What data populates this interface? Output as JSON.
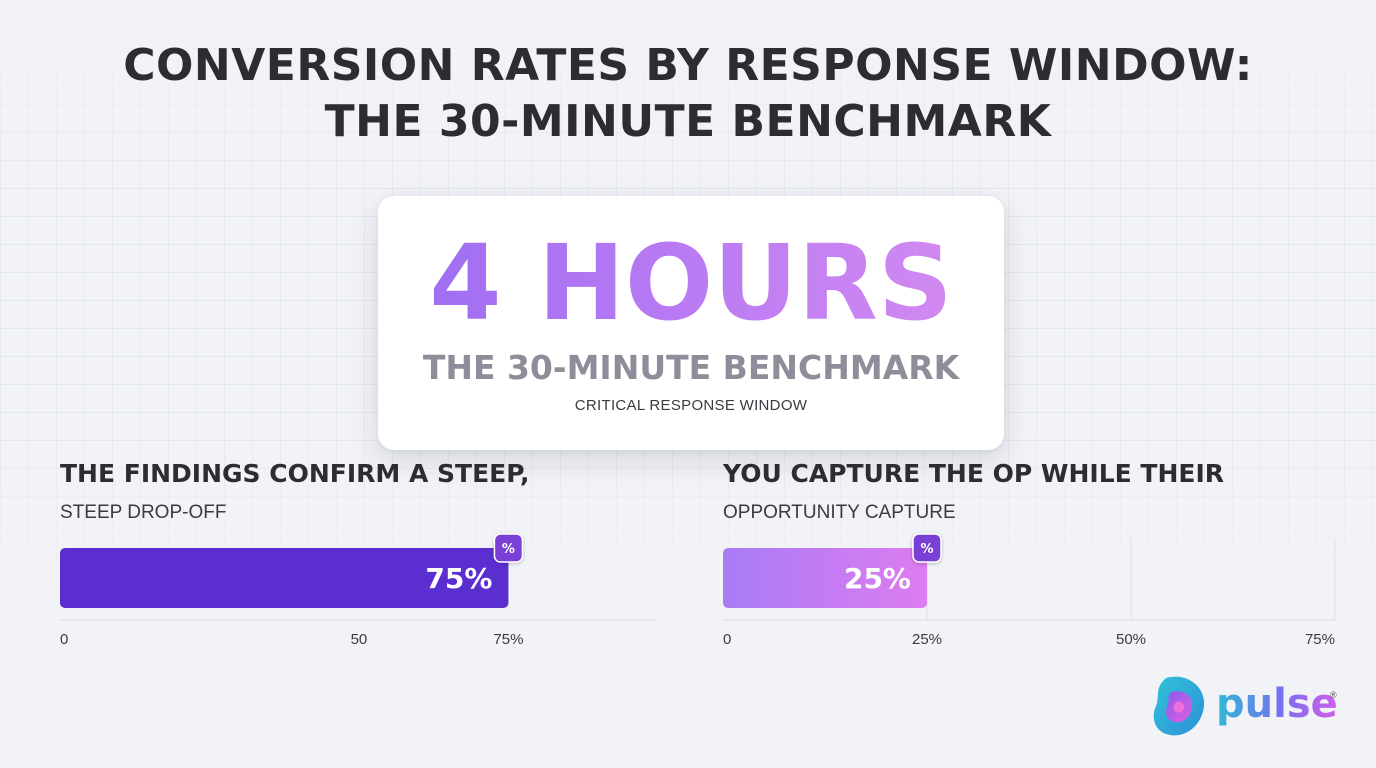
{
  "title": {
    "line1": "CONVERSION RATES BY RESPONSE WINDOW:",
    "line2": "THE 30-MINUTE BENCHMARK"
  },
  "hero": {
    "value": "4 HOURS",
    "subtitle": "THE 30-MINUTE BENCHMARK",
    "caption": "CRITICAL RESPONSE WINDOW"
  },
  "colors": {
    "bar_left": "#5b2ed0",
    "bar_right_start": "#a77cf5",
    "bar_right_end": "#de7cf0",
    "badge": "#7a3fd6",
    "title_text": "#2b2d30"
  },
  "chart_data": [
    {
      "type": "bar",
      "orientation": "horizontal",
      "title": "THE FINDINGS CONFIRM A STEEP,",
      "subtitle": "STEEP DROP-OFF",
      "values": [
        75
      ],
      "value_label": "75%",
      "badge": "%",
      "xlim": [
        0,
        95
      ],
      "ticks": [
        0,
        50,
        75
      ],
      "tick_labels": [
        "0",
        "50",
        "75%"
      ],
      "grid": false
    },
    {
      "type": "bar",
      "orientation": "horizontal",
      "title": "YOU CAPTURE THE OP WHILE THEIR",
      "subtitle": "OPPORTUNITY CAPTURE",
      "values": [
        25
      ],
      "value_label": "25%",
      "badge": "%",
      "xlim": [
        0,
        75
      ],
      "ticks": [
        0,
        25,
        50,
        75
      ],
      "tick_labels": [
        "0",
        "25%",
        "50%",
        "75%"
      ],
      "grid": true
    }
  ],
  "logo": {
    "text": "pulse",
    "mark": "®"
  }
}
